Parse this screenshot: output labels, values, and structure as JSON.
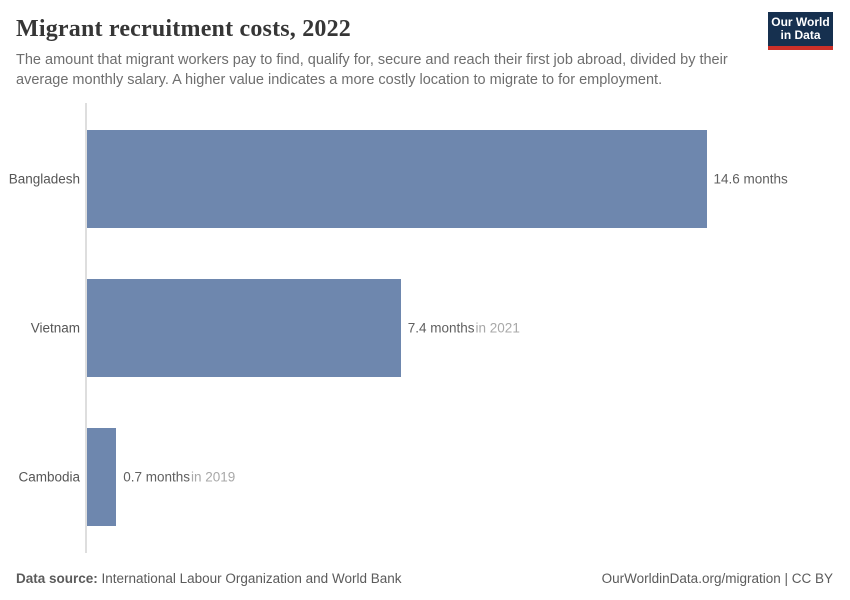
{
  "header": {
    "title": "Migrant recruitment costs, 2022",
    "subtitle": "The amount that migrant workers pay to find, qualify for, secure and reach their first job abroad, divided by their average monthly salary. A higher value indicates a more costly location to migrate to for employment.",
    "logo": {
      "line1": "Our World",
      "line2": "in Data",
      "bg_color": "#16304f",
      "accent_color": "#cc3029",
      "text_color": "#ffffff"
    }
  },
  "chart_data": {
    "type": "bar",
    "orientation": "horizontal",
    "title": "Migrant recruitment costs, 2022",
    "unit": "months",
    "categories": [
      "Bangladesh",
      "Vietnam",
      "Cambodia"
    ],
    "values": [
      14.6,
      7.4,
      0.7
    ],
    "value_labels": [
      "14.6 months",
      "7.4 months",
      "0.7 months"
    ],
    "time_notes": [
      "",
      "in 2021",
      "in 2019"
    ],
    "xlim": [
      0,
      14.6
    ],
    "grid": false,
    "legend": "none",
    "bar_color": "#6e87ae",
    "axis_color": "#dedede"
  },
  "footer": {
    "source_label": "Data source:",
    "source_text": " International Labour Organization and World Bank",
    "attribution": "OurWorldinData.org/migration | CC BY"
  }
}
